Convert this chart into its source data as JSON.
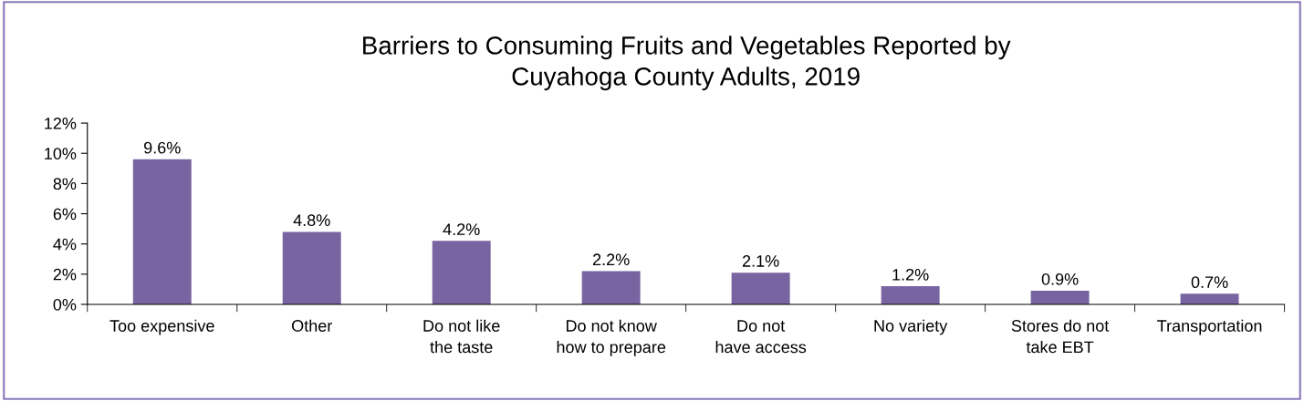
{
  "chart_data": {
    "type": "bar",
    "title": "Barriers to Consuming Fruits and Vegetables Reported by\nCuyahoga County Adults, 2019",
    "categories": [
      "Too expensive",
      "Other",
      "Do not like\nthe taste",
      "Do not know\nhow to prepare",
      "Do not\nhave access",
      "No variety",
      "Stores do not\ntake EBT",
      "Transportation"
    ],
    "values": [
      9.6,
      4.8,
      4.2,
      2.2,
      2.1,
      1.2,
      0.9,
      0.7
    ],
    "value_labels": [
      "9.6%",
      "4.8%",
      "4.2%",
      "2.2%",
      "2.1%",
      "1.2%",
      "0.9%",
      "0.7%"
    ],
    "color": "#7864a0",
    "ylim": [
      0,
      12
    ],
    "yticks": [
      {
        "value": 0,
        "label": "0%"
      },
      {
        "value": 2,
        "label": "2%"
      },
      {
        "value": 4,
        "label": "4%"
      },
      {
        "value": 6,
        "label": "6%"
      },
      {
        "value": 8,
        "label": "8%"
      },
      {
        "value": 10,
        "label": "10%"
      },
      {
        "value": 12,
        "label": "12%"
      }
    ],
    "grid": false,
    "legend": false
  }
}
